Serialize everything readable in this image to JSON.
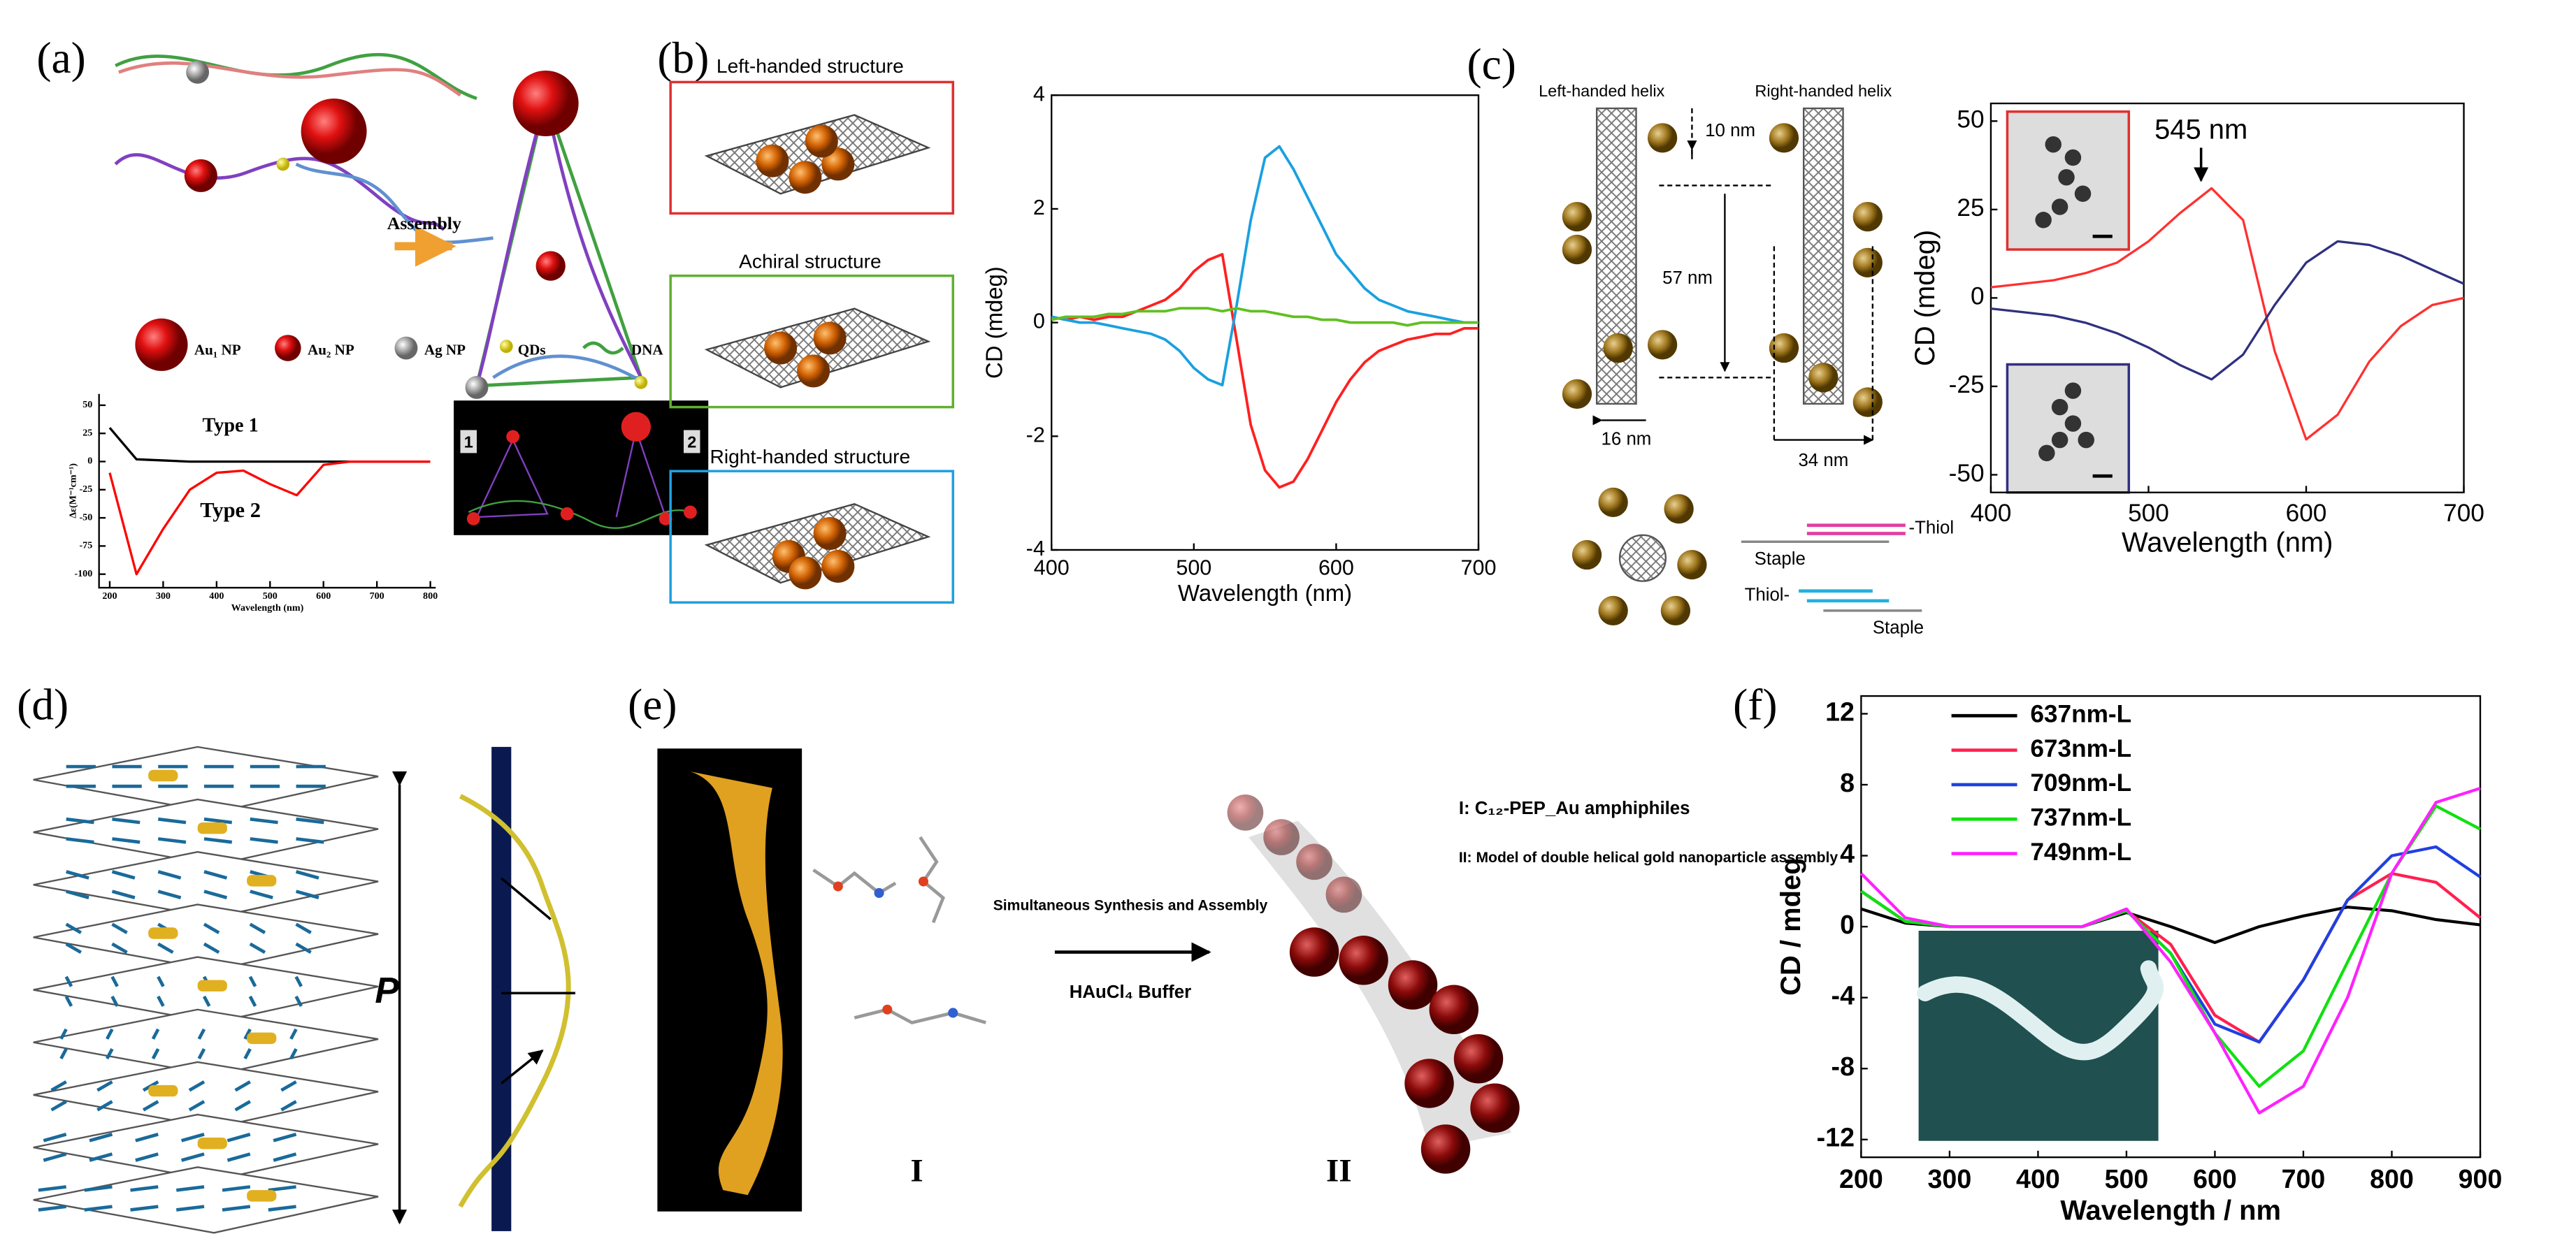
{
  "chart_data": [
    {
      "type": "line",
      "xlabel": "Wavelength (nm)",
      "ylabel": "Δε(M⁻¹cm⁻¹)",
      "x": [
        200,
        250,
        300,
        350,
        400,
        450,
        500,
        550,
        600,
        650,
        700,
        750,
        800
      ],
      "series": [
        {
          "color": "#000000",
          "values": [
            30,
            2,
            1,
            0,
            0,
            0,
            0,
            0,
            0,
            0,
            0,
            0,
            0
          ]
        },
        {
          "color": "#ff0000",
          "values": [
            -10,
            -100,
            -60,
            -25,
            -10,
            -8,
            -20,
            -30,
            -3,
            0,
            0,
            0,
            0
          ]
        }
      ],
      "xlim": [
        180,
        810
      ],
      "ylim": [
        -112,
        60
      ],
      "xticks": [
        200,
        300,
        400,
        500,
        600,
        700,
        800
      ],
      "yticks": [
        50,
        25,
        0,
        -25,
        -50,
        -75,
        -100
      ],
      "annotations": [
        "Type 1",
        "Type 2"
      ]
    },
    {
      "type": "line",
      "xlabel": "Wavelength (nm)",
      "ylabel": "CD (mdeg)",
      "x": [
        400,
        410,
        420,
        430,
        440,
        450,
        460,
        470,
        480,
        490,
        500,
        510,
        520,
        530,
        540,
        550,
        560,
        570,
        580,
        590,
        600,
        610,
        620,
        630,
        640,
        650,
        660,
        670,
        680,
        690,
        700
      ],
      "series": [
        {
          "color": "#ff2020",
          "values": [
            0.1,
            0.05,
            0.1,
            0.05,
            0.1,
            0.1,
            0.2,
            0.3,
            0.4,
            0.6,
            0.9,
            1.1,
            1.2,
            -0.3,
            -1.8,
            -2.6,
            -2.9,
            -2.8,
            -2.4,
            -1.9,
            -1.4,
            -1.0,
            -0.7,
            -0.5,
            -0.4,
            -0.3,
            -0.25,
            -0.2,
            -0.2,
            -0.1,
            -0.1
          ]
        },
        {
          "color": "#1aa0e0",
          "values": [
            0.1,
            0.05,
            0,
            0,
            -0.05,
            -0.1,
            -0.15,
            -0.2,
            -0.3,
            -0.5,
            -0.8,
            -1.0,
            -1.1,
            0.3,
            1.8,
            2.9,
            3.1,
            2.7,
            2.2,
            1.7,
            1.2,
            0.9,
            0.6,
            0.4,
            0.3,
            0.2,
            0.15,
            0.1,
            0.05,
            0,
            0
          ]
        },
        {
          "color": "#60c020",
          "values": [
            0.05,
            0.1,
            0.1,
            0.1,
            0.15,
            0.15,
            0.2,
            0.2,
            0.2,
            0.25,
            0.25,
            0.25,
            0.2,
            0.25,
            0.2,
            0.2,
            0.15,
            0.1,
            0.1,
            0.05,
            0.05,
            0,
            0,
            0,
            0,
            -0.05,
            0,
            0,
            0,
            0,
            0
          ]
        }
      ],
      "xlim": [
        400,
        700
      ],
      "ylim": [
        -4,
        4
      ],
      "xticks": [
        400,
        500,
        600,
        700
      ],
      "yticks": [
        -4,
        -2,
        0,
        2,
        4
      ],
      "annotations": []
    },
    {
      "type": "line",
      "xlabel": "Wavelength (nm)",
      "ylabel": "CD (mdeg)",
      "x": [
        400,
        420,
        440,
        460,
        480,
        500,
        520,
        540,
        560,
        580,
        600,
        620,
        640,
        660,
        680,
        700
      ],
      "series": [
        {
          "color": "#ff3030",
          "values": [
            3,
            4,
            5,
            7,
            10,
            16,
            24,
            31,
            22,
            -15,
            -40,
            -33,
            -18,
            -8,
            -2,
            0
          ]
        },
        {
          "color": "#303080",
          "values": [
            -3,
            -4,
            -5,
            -7,
            -10,
            -14,
            -19,
            -23,
            -16,
            -2,
            10,
            16,
            15,
            12,
            8,
            4
          ]
        }
      ],
      "xlim": [
        400,
        700
      ],
      "ylim": [
        -55,
        55
      ],
      "xticks": [
        400,
        500,
        600,
        700
      ],
      "yticks": [
        -50,
        -25,
        0,
        25,
        50
      ],
      "annotations": [
        "545 nm"
      ]
    },
    {
      "type": "line",
      "xlabel": "Wavelength / nm",
      "ylabel": "CD / mdeg",
      "x": [
        200,
        250,
        300,
        350,
        400,
        450,
        500,
        550,
        600,
        650,
        700,
        750,
        800,
        850,
        900
      ],
      "series": [
        {
          "name": "637nm-L",
          "color": "#000000",
          "values": [
            1,
            0.2,
            0,
            0,
            0,
            0,
            0.8,
            0,
            -0.9,
            0,
            0.6,
            1.1,
            0.9,
            0.4,
            0.1
          ]
        },
        {
          "name": "673nm-L",
          "color": "#ff2050",
          "values": [
            2,
            0.3,
            0,
            0,
            0,
            0,
            0.9,
            -1,
            -5,
            -6.5,
            -3,
            1.5,
            3,
            2.5,
            0.5
          ]
        },
        {
          "name": "709nm-L",
          "color": "#2040e0",
          "values": [
            2,
            0.3,
            0,
            0,
            0,
            0,
            0.9,
            -1.5,
            -5.5,
            -6.5,
            -3,
            1.5,
            4,
            4.5,
            2.8
          ]
        },
        {
          "name": "737nm-L",
          "color": "#10e010",
          "values": [
            2,
            0.3,
            0,
            0,
            0,
            0,
            0.9,
            -1.5,
            -6,
            -9,
            -7,
            -2,
            3,
            6.8,
            5.5
          ]
        },
        {
          "name": "749nm-L",
          "color": "#ff20ff",
          "values": [
            3,
            0.5,
            0,
            0,
            0,
            0,
            1,
            -2,
            -6,
            -10.5,
            -9,
            -4,
            3,
            7,
            7.8
          ]
        }
      ],
      "xlim": [
        200,
        900
      ],
      "ylim": [
        -13,
        13
      ],
      "xticks": [
        200,
        300,
        400,
        500,
        600,
        700,
        800,
        900
      ],
      "yticks": [
        -12,
        -8,
        -4,
        0,
        4,
        8,
        12
      ],
      "annotations": []
    }
  ],
  "figure": {
    "panel_labels": [
      "(a)",
      "(b)",
      "(c)",
      "(d)",
      "(e)",
      "(f)"
    ],
    "a": {
      "assembly": "Assembly",
      "legend": [
        "Au₁ NP",
        "Au₂ NP",
        "Ag NP",
        "QDs",
        "DNA"
      ],
      "inset": [
        "1",
        "2"
      ]
    },
    "b": {
      "structures": [
        "Left-handed structure",
        "Achiral structure",
        "Right-handed structure"
      ]
    },
    "c": {
      "helices": [
        "Left-handed helix",
        "Right-handed helix"
      ],
      "dims": [
        "10 nm",
        "57 nm",
        "16 nm",
        "34 nm"
      ],
      "thiol": [
        "-Thiol",
        "Staple",
        "Thiol-",
        "Staple"
      ]
    },
    "d": {
      "pitch": "P"
    },
    "e": {
      "arrow_top": "Simultaneous Synthesis and Assembly",
      "arrow_bottom": "HAuCl₄ Buffer",
      "legend": [
        "I: C₁₂-PEP_Au amphiphiles",
        "II: Model of double helical gold nanoparticle assembly"
      ],
      "stages": [
        "I",
        "II"
      ]
    }
  }
}
